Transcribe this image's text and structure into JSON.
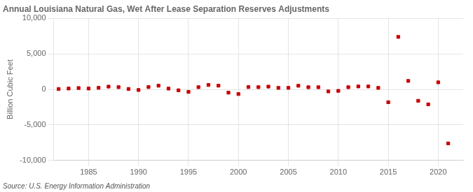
{
  "chart_data": {
    "type": "scatter",
    "title": "Annual Louisiana Natural Gas, Wet After Lease Separation Reserves Adjustments",
    "ylabel": "Billion Cubic Feet",
    "annotation": "Source: U.S. Energy Information Administration",
    "x": [
      1982,
      1983,
      1984,
      1985,
      1986,
      1987,
      1988,
      1989,
      1990,
      1991,
      1992,
      1993,
      1994,
      1995,
      1996,
      1997,
      1998,
      1999,
      2000,
      2001,
      2002,
      2003,
      2004,
      2005,
      2006,
      2007,
      2008,
      2009,
      2010,
      2011,
      2012,
      2013,
      2014,
      2015,
      2016,
      2017,
      2018,
      2019,
      2020,
      2021
    ],
    "values": [
      60,
      130,
      200,
      130,
      230,
      400,
      320,
      70,
      -80,
      330,
      530,
      120,
      -120,
      -350,
      320,
      630,
      530,
      -450,
      -650,
      330,
      320,
      400,
      220,
      230,
      520,
      310,
      310,
      -280,
      -200,
      310,
      420,
      420,
      220,
      -1800,
      7400,
      1200,
      -1600,
      -2100,
      1000,
      -7600
    ],
    "color": "#cc0000",
    "marker": "square",
    "xlim": [
      1981.5,
      2022.5
    ],
    "xticks": [
      1985,
      1990,
      1995,
      2000,
      2005,
      2010,
      2015,
      2020
    ],
    "ylim": [
      -10000,
      10000
    ],
    "yticks": [
      {
        "value": -10000,
        "label": "-10,000"
      },
      {
        "value": -5000,
        "label": "-5,000"
      },
      0,
      {
        "value": 5000,
        "label": "5,000"
      },
      {
        "value": 10000,
        "label": "10,000"
      }
    ],
    "grid": true
  }
}
